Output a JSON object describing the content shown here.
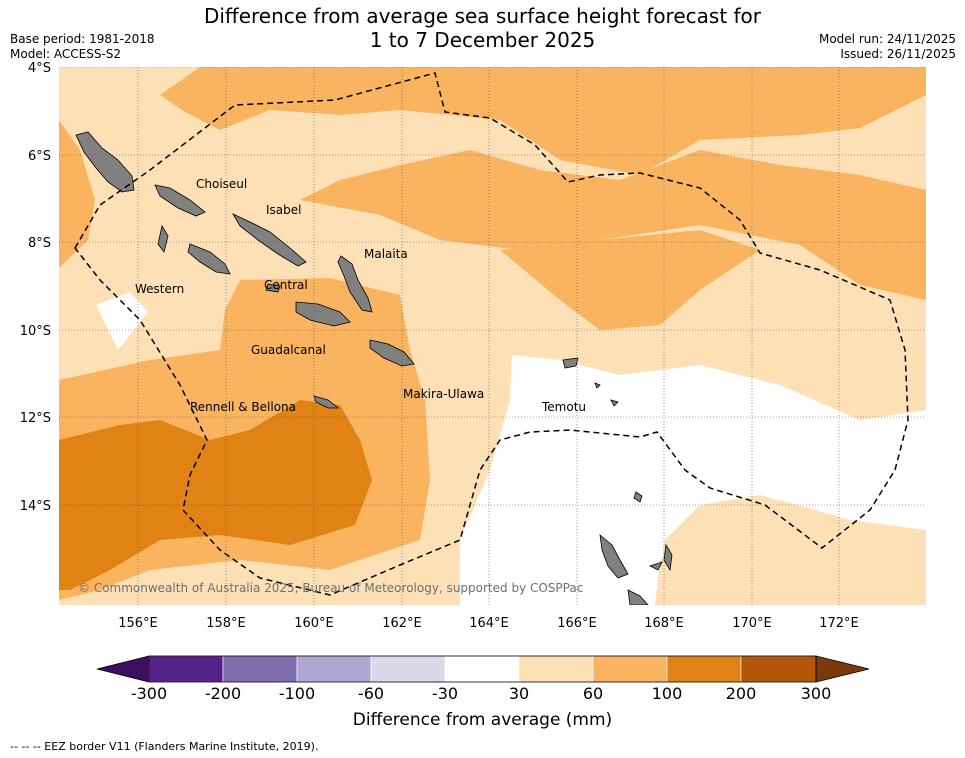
{
  "title_line1": "Difference from average sea surface height forecast for",
  "title_line2": "1 to 7 December 2025",
  "meta_left": {
    "base_period": "Base period: 1981-2018",
    "model": "Model: ACCESS-S2"
  },
  "meta_right": {
    "model_run": "Model run: 24/11/2025",
    "issued": "Issued: 26/11/2025"
  },
  "lat_labels": [
    "4°S",
    "6°S",
    "8°S",
    "10°S",
    "12°S",
    "14°S"
  ],
  "lon_labels": [
    "156°E",
    "158°E",
    "160°E",
    "162°E",
    "164°E",
    "166°E",
    "168°E",
    "170°E",
    "172°E"
  ],
  "regions": [
    "Choiseul",
    "Isabel",
    "Malaita",
    "Western",
    "Central",
    "Guadalcanal",
    "Makira-Ulawa",
    "Rennell & Bellona",
    "Temotu"
  ],
  "copyright": "© Commonwealth of Australia 2025, Bureau of Meteorology, supported by COSPPac",
  "colorbar": {
    "title": "Difference from average (mm)",
    "tick_labels": [
      "-300",
      "-200",
      "-100",
      "-60",
      "-30",
      "30",
      "60",
      "100",
      "200",
      "300"
    ],
    "colors": [
      "#3d0f5e",
      "#542288",
      "#7f6dab",
      "#aea7d1",
      "#d9d9ea",
      "#ffffff",
      "#fde0b6",
      "#fab35e",
      "#e08214",
      "#b25607",
      "#7a3a0b"
    ]
  },
  "footnote": "-- -- -- EEZ border V11 (Flanders Marine Institute, 2019)."
}
